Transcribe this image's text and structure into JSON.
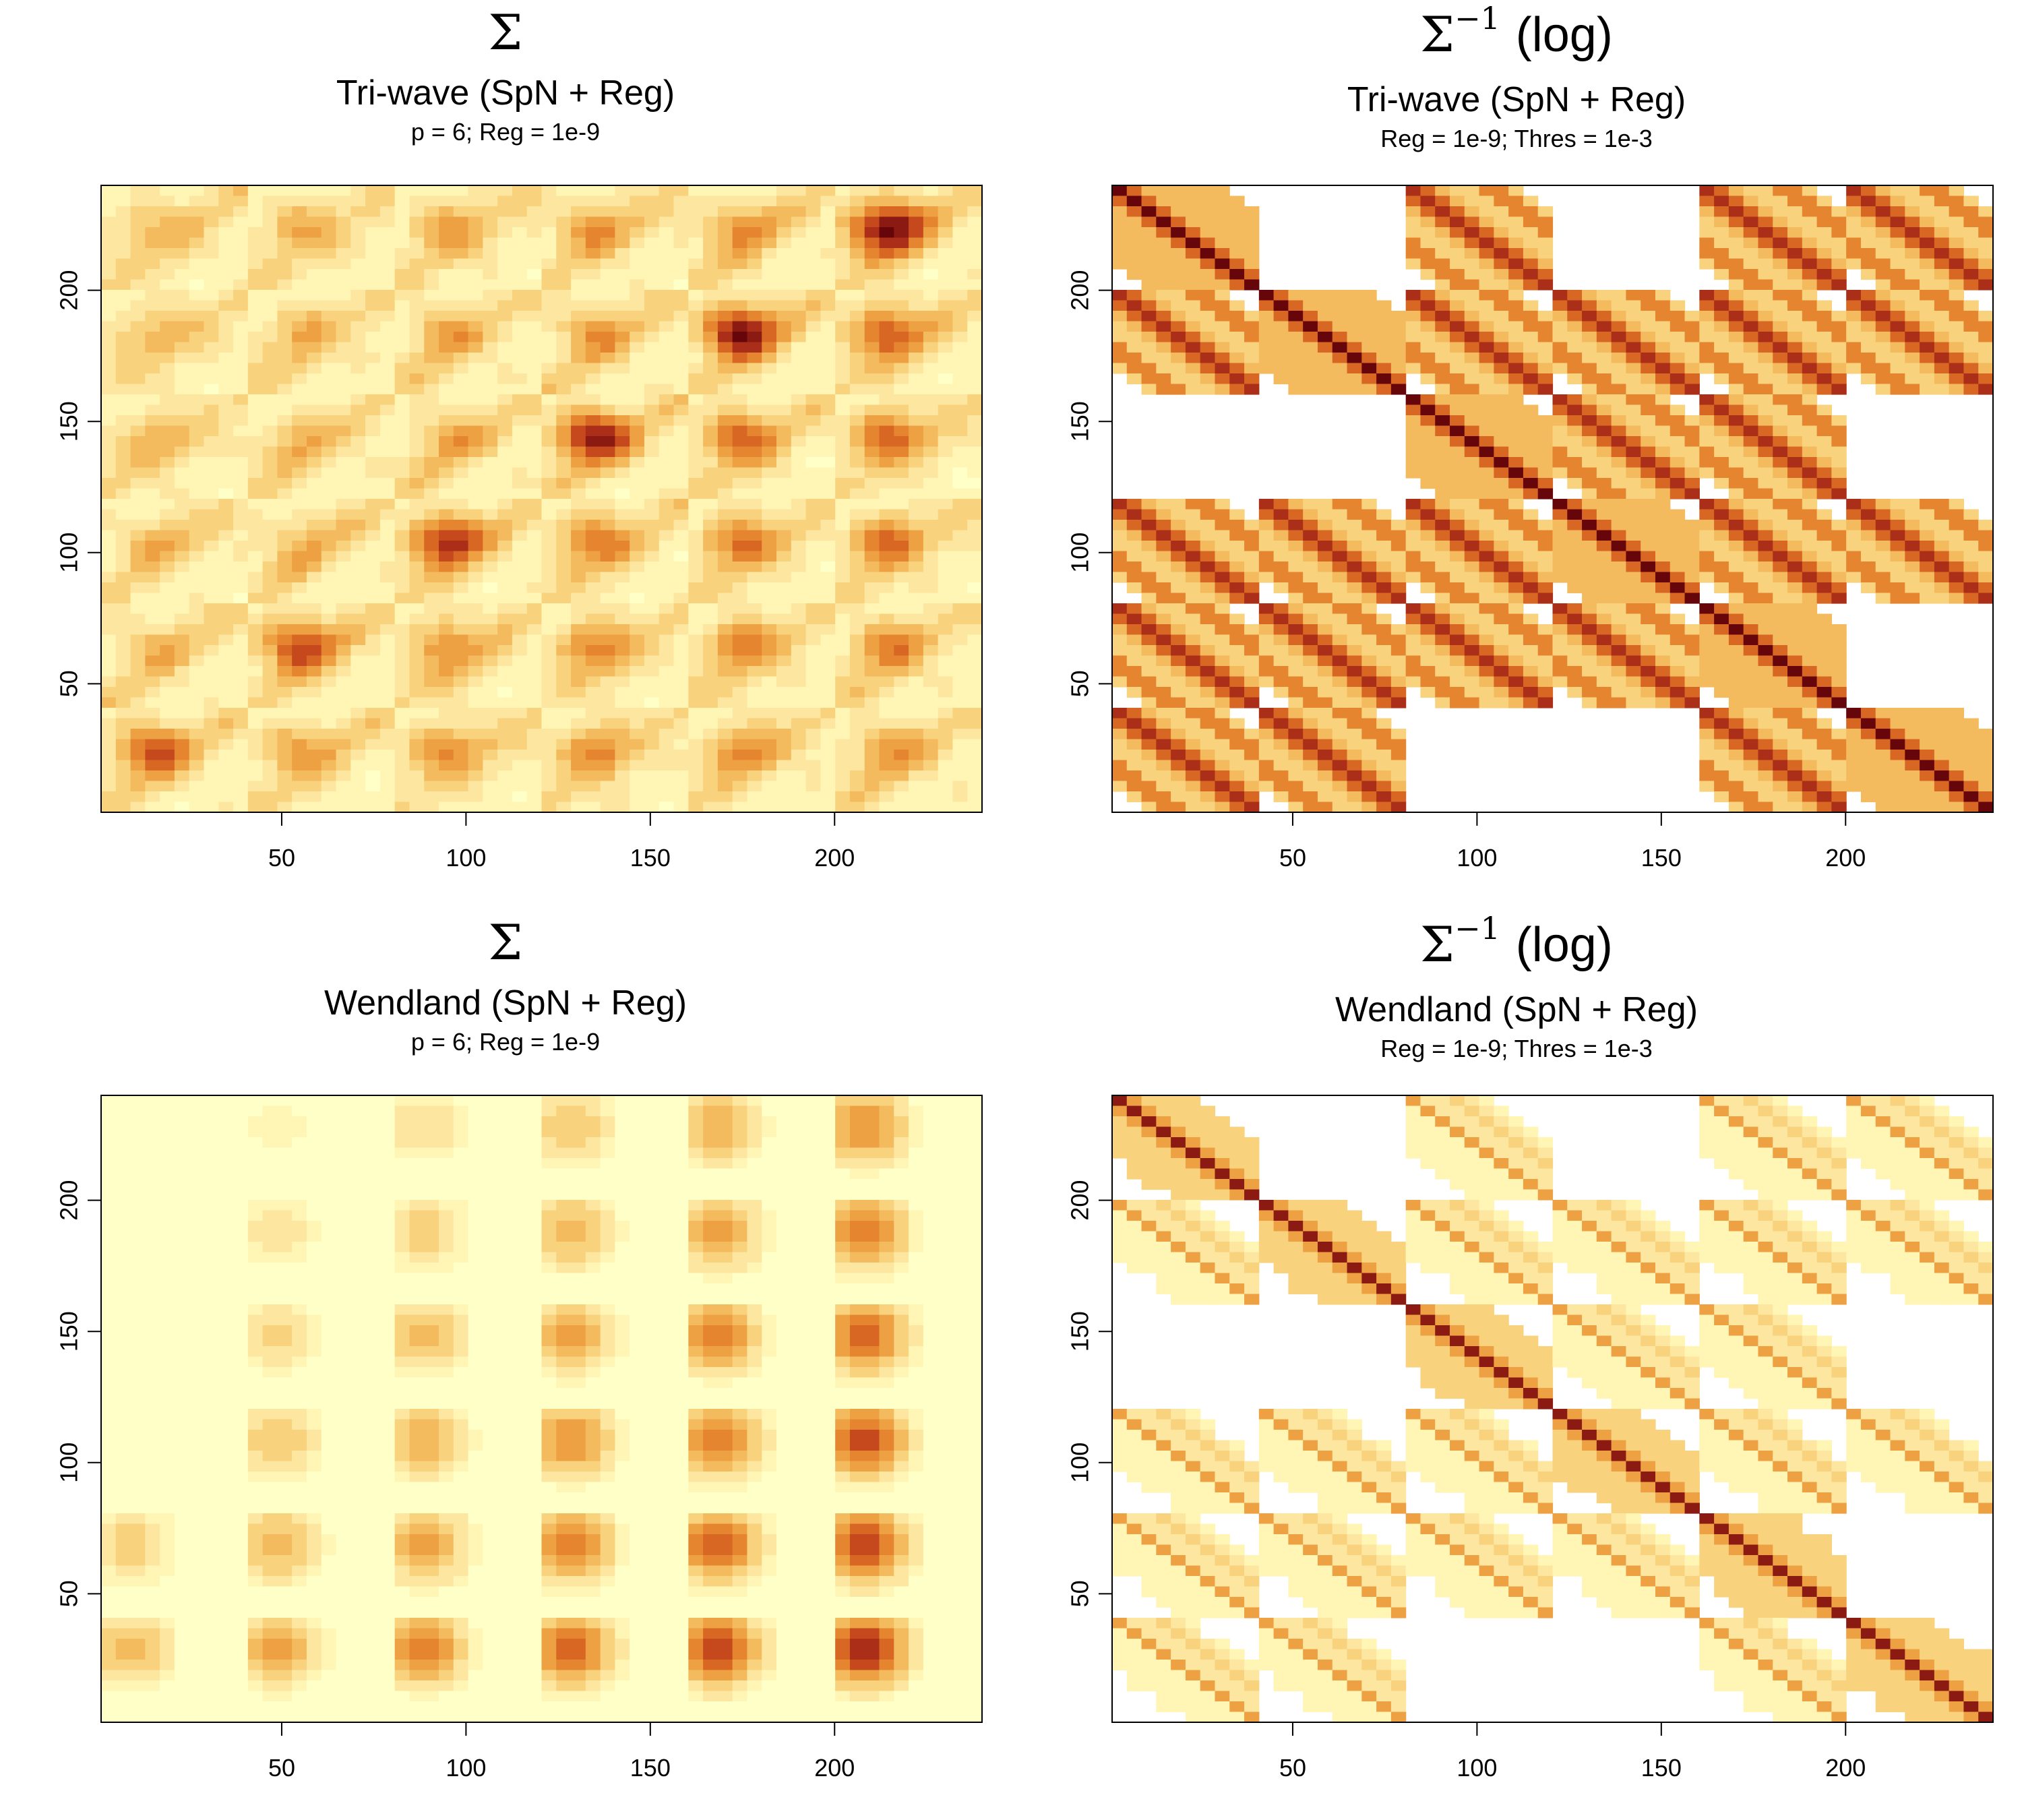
{
  "chart_data": [
    {
      "type": "heatmap",
      "title": "Σ",
      "subtitle": "Tri-wave (SpN + Reg)",
      "subsubtitle": "p = 6; Reg = 1e-9",
      "xlim": [
        1,
        240
      ],
      "ylim": [
        1,
        240
      ],
      "x_ticks": [
        "50",
        "100",
        "150",
        "200"
      ],
      "y_ticks": [
        "50",
        "100",
        "150",
        "200"
      ],
      "block_size": 40,
      "palette": "heat-hcl (light yellow to dark red)",
      "kernel": "triwave",
      "intensity": 1.0
    },
    {
      "type": "heatmap",
      "title": "Σ",
      "title_sup": "−1",
      "title_suffix": "(log)",
      "subtitle": "Tri-wave (SpN + Reg)",
      "subsubtitle": "Reg = 1e-9; Thres = 1e-3",
      "xlim": [
        1,
        240
      ],
      "ylim": [
        1,
        240
      ],
      "x_ticks": [
        "50",
        "100",
        "150",
        "200"
      ],
      "y_ticks": [
        "50",
        "100",
        "150",
        "200"
      ],
      "block_size": 40,
      "palette": "heat-hcl (light yellow to dark red), white below threshold",
      "kernel": "precision",
      "intensity": 1.0
    },
    {
      "type": "heatmap",
      "title": "Σ",
      "subtitle": "Wendland (SpN + Reg)",
      "subsubtitle": "p = 6; Reg = 1e-9",
      "xlim": [
        1,
        240
      ],
      "ylim": [
        1,
        240
      ],
      "x_ticks": [
        "50",
        "100",
        "150",
        "200"
      ],
      "y_ticks": [
        "50",
        "100",
        "150",
        "200"
      ],
      "block_size": 40,
      "palette": "heat-hcl (light yellow to dark red)",
      "kernel": "wendland",
      "intensity": 1.0
    },
    {
      "type": "heatmap",
      "title": "Σ",
      "title_sup": "−1",
      "title_suffix": "(log)",
      "subtitle": "Wendland (SpN + Reg)",
      "subsubtitle": "Reg = 1e-9; Thres = 1e-3",
      "xlim": [
        1,
        240
      ],
      "ylim": [
        1,
        240
      ],
      "x_ticks": [
        "50",
        "100",
        "150",
        "200"
      ],
      "y_ticks": [
        "50",
        "100",
        "150",
        "200"
      ],
      "block_size": 40,
      "palette": "heat-hcl (light yellow to dark red), white below threshold",
      "kernel": "precision-thin",
      "intensity": 0.85
    }
  ]
}
